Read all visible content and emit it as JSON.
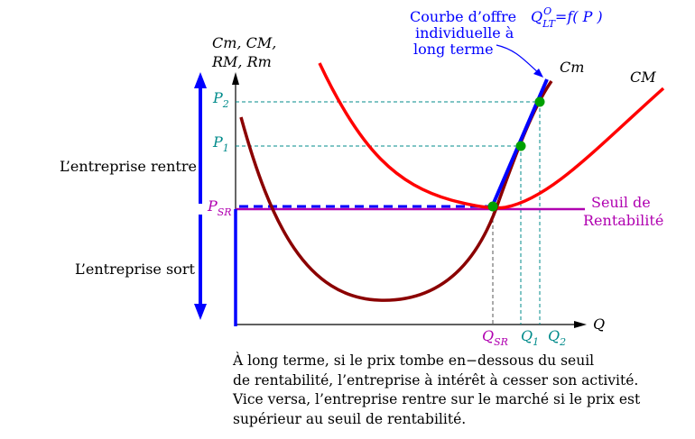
{
  "axes": {
    "y_label_line1": "Cm, CM,",
    "y_label_line2": "RM, Rm",
    "x_label": "Q"
  },
  "prices": {
    "p2": {
      "base": "P",
      "sub": "2"
    },
    "p1": {
      "base": "P",
      "sub": "1"
    },
    "psr": {
      "base": "P",
      "sub": "SR"
    }
  },
  "quantities": {
    "qsr": {
      "base": "Q",
      "sub": "SR"
    },
    "q1": {
      "base": "Q",
      "sub": "1"
    },
    "q2": {
      "base": "Q",
      "sub": "2"
    }
  },
  "curves": {
    "cm_label": "Cm",
    "CM_label": "CM"
  },
  "supply_annotation": {
    "line1": "Courbe d’offre",
    "line2": "individuelle à",
    "line3": "long terme",
    "formula_base": "Q",
    "formula_sup": "O",
    "formula_sub": "LT",
    "formula_rest": "=f( P )"
  },
  "threshold": {
    "line1": "Seuil de",
    "line2": "Rentabilité"
  },
  "zones": {
    "enter": "L’entreprise rentre",
    "exit": "L’entreprise sort"
  },
  "caption": {
    "line1": "À long terme, si le prix tombe en−dessous du seuil",
    "line2": "de rentabilité, l’entreprise à intérêt à cesser son activité.",
    "line3": "Vice versa, l’entreprise rentre sur le marché si le prix est",
    "line4": "supérieur au seuil de rentabilité."
  },
  "colors": {
    "cm_curve": "#ff0000",
    "avc_curve": "#8b0000",
    "supply": "#0000ff",
    "threshold": "#b000b0",
    "guide": "#008b8b",
    "points": "#00a000",
    "teal_text": "#008b8b"
  }
}
